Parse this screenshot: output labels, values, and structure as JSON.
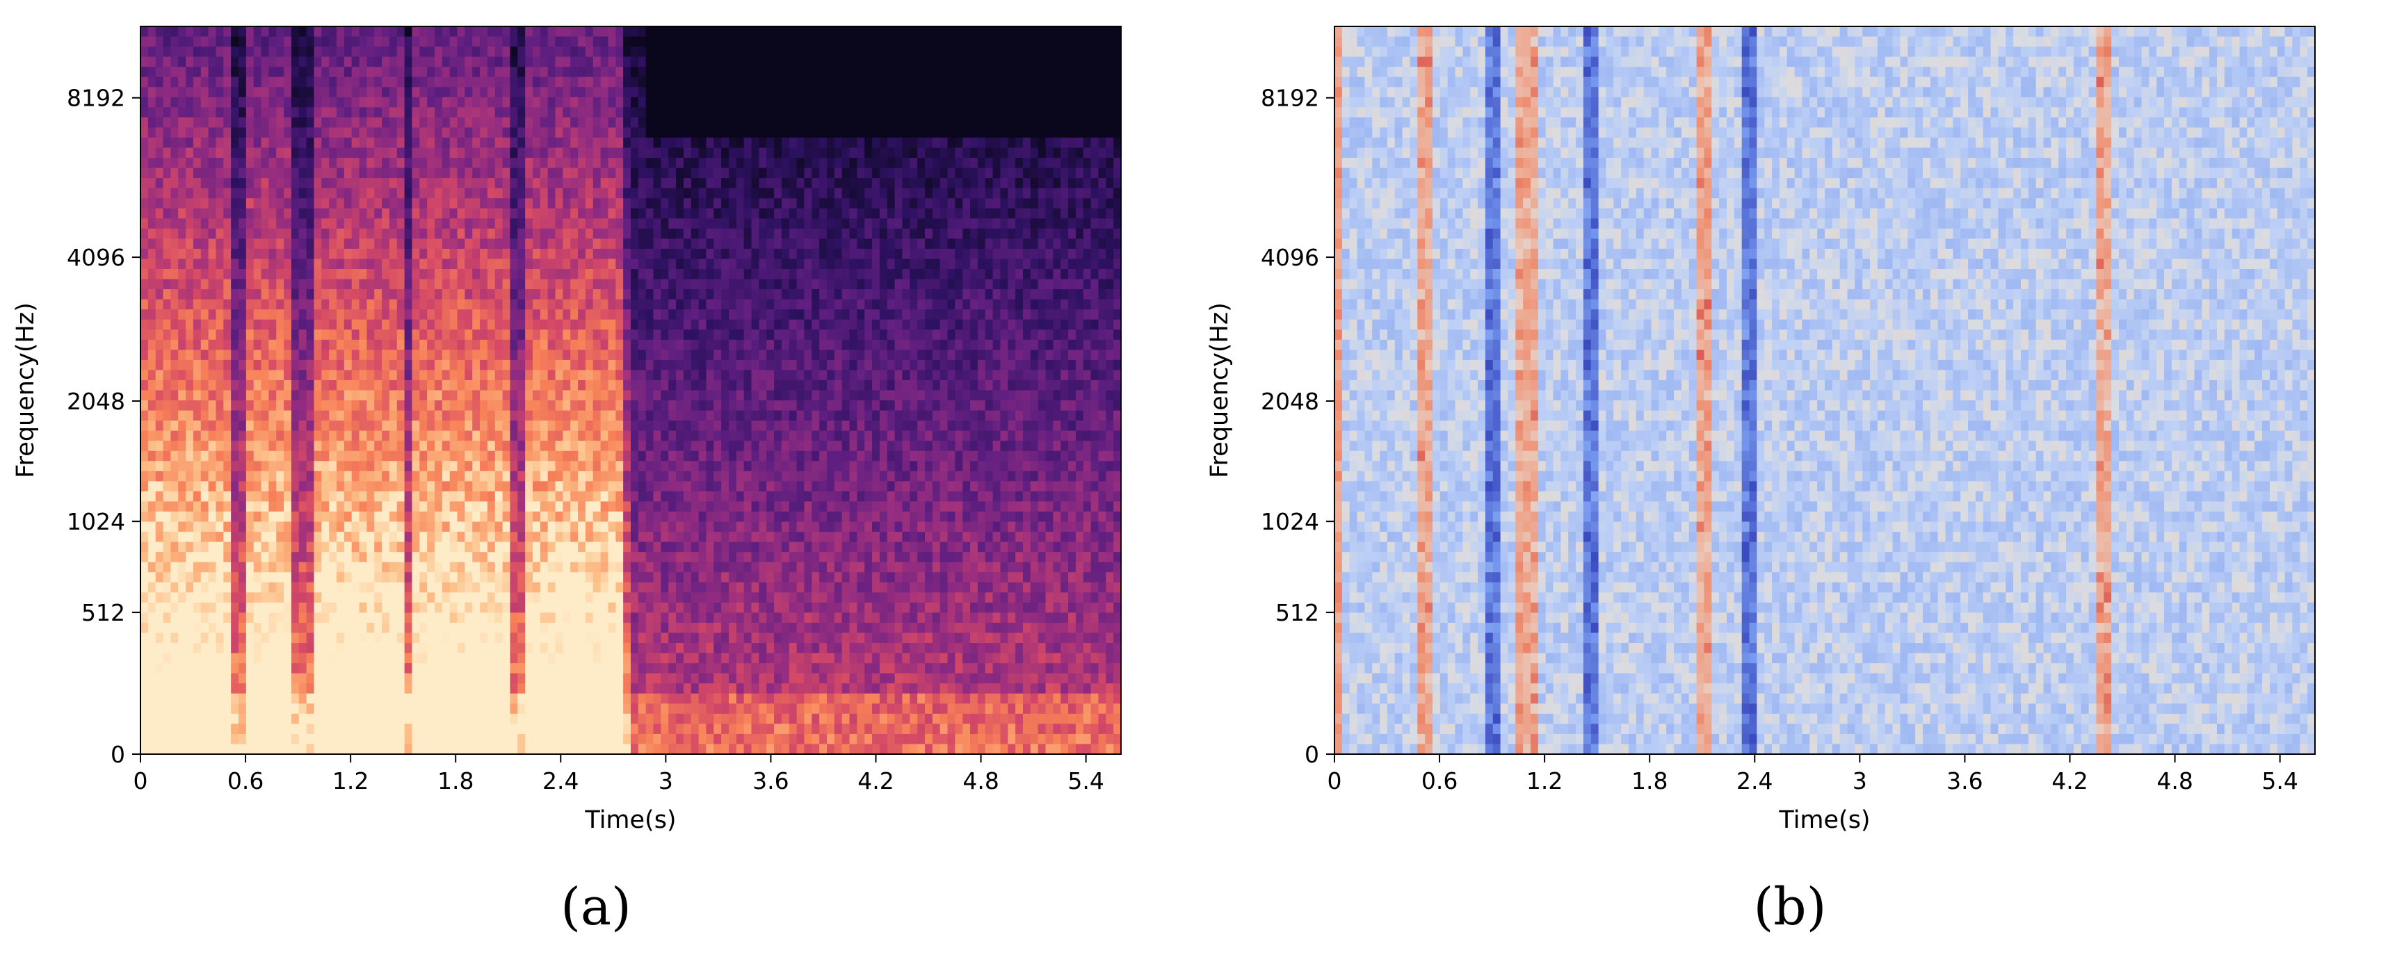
{
  "chart_data": [
    {
      "type": "heatmap",
      "caption": "(a)",
      "colormap": "magma",
      "xlabel": "Time(s)",
      "ylabel": "Frequency(Hz)",
      "xlim": [
        0,
        5.6
      ],
      "x_ticks": [
        "0",
        "0.6",
        "1.2",
        "1.8",
        "2.4",
        "3",
        "3.6",
        "4.2",
        "4.8",
        "5.4"
      ],
      "y_ticks": [
        "0",
        "512",
        "1024",
        "2048",
        "4096",
        "8192"
      ],
      "y_scale": "mel",
      "voiced_segments_s": [
        [
          0.0,
          0.5
        ],
        [
          0.6,
          0.85
        ],
        [
          1.0,
          1.5
        ],
        [
          1.55,
          2.1
        ],
        [
          2.2,
          2.75
        ]
      ],
      "bright_bands_hz": [
        [
          0,
          512
        ],
        [
          512,
          1400
        ]
      ]
    },
    {
      "type": "heatmap",
      "caption": "(b)",
      "colormap": "coolwarm",
      "xlabel": "Time(s)",
      "ylabel": "Frequency(Hz)",
      "xlim": [
        0,
        5.6
      ],
      "x_ticks": [
        "0",
        "0.6",
        "1.2",
        "1.8",
        "2.4",
        "3",
        "3.6",
        "4.2",
        "4.8",
        "5.4"
      ],
      "y_ticks": [
        "0",
        "512",
        "1024",
        "2048",
        "4096",
        "8192"
      ],
      "y_scale": "mel",
      "strong_vertical_lines_s": [
        0.5,
        0.9,
        1.1,
        1.45,
        2.1,
        2.35,
        4.4
      ]
    }
  ]
}
